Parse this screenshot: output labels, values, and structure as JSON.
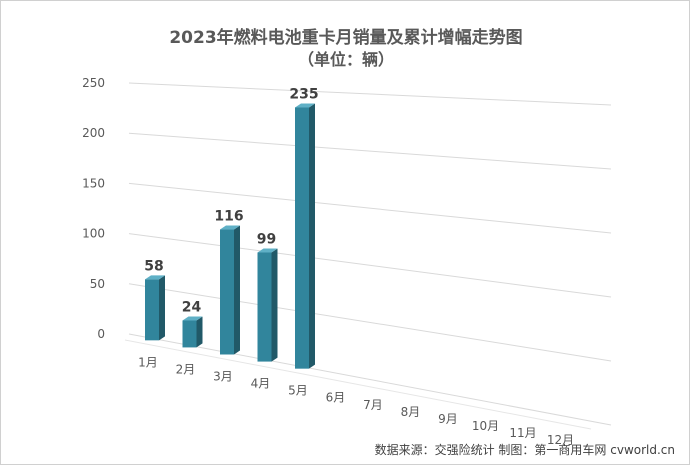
{
  "chart_data": {
    "type": "bar",
    "title": "2023年燃料电池重卡月销量及累计增幅走势图",
    "subtitle": "（单位：辆）",
    "categories": [
      "1月",
      "2月",
      "3月",
      "4月",
      "5月",
      "6月",
      "7月",
      "8月",
      "9月",
      "10月",
      "11月",
      "12月"
    ],
    "values": [
      58,
      24,
      116,
      99,
      235,
      null,
      null,
      null,
      null,
      null,
      null,
      null
    ],
    "y_ticks": [
      0,
      50,
      100,
      150,
      200,
      250
    ],
    "ylim": [
      0,
      250
    ],
    "grid": true,
    "legend": "none",
    "bar_color": "#31859C"
  },
  "footer": "数据来源：交强险统计  制图：第一商用车网 cvworld.cn"
}
